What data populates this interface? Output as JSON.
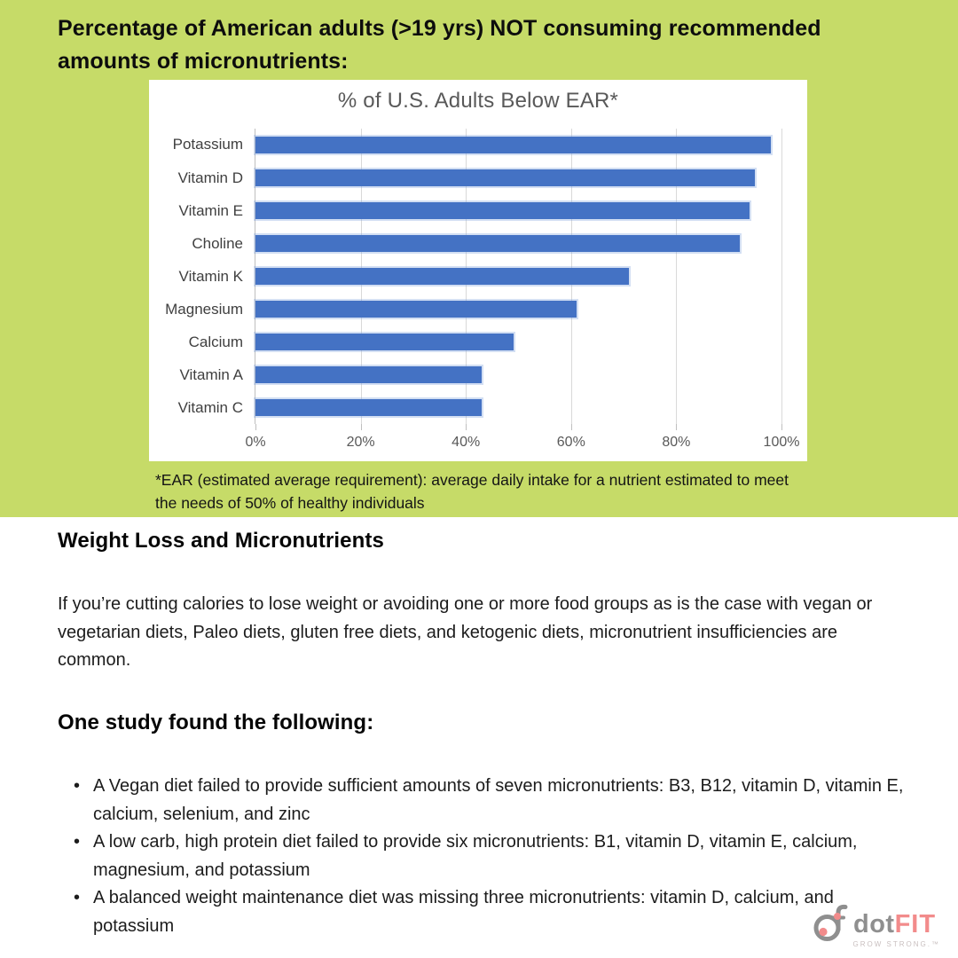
{
  "page": {
    "title": "Percentage of American adults (>19 yrs) NOT consuming recommended amounts of micronutrients:"
  },
  "chart_data": {
    "type": "bar",
    "orientation": "horizontal",
    "title": "% of U.S. Adults Below EAR*",
    "categories": [
      "Potassium",
      "Vitamin D",
      "Vitamin E",
      "Choline",
      "Vitamin K",
      "Magnesium",
      "Calcium",
      "Vitamin A",
      "Vitamin C"
    ],
    "values": [
      98,
      95,
      94,
      92,
      71,
      61,
      49,
      43,
      43
    ],
    "xlabel": "",
    "ylabel": "",
    "xlim": [
      0,
      100
    ],
    "x_ticks": [
      "0%",
      "20%",
      "40%",
      "60%",
      "80%",
      "100%"
    ],
    "grid": true,
    "legend": false,
    "bar_color": "#4472c4"
  },
  "footnote": "*EAR (estimated average requirement): average daily intake for a nutrient estimated to meet the needs of 50% of healthy individuals",
  "sections": {
    "weight_loss_heading": "Weight Loss and Micronutrients",
    "weight_loss_paragraph": "If you’re cutting calories to lose weight or avoiding one or more food groups as is the case with vegan or vegetarian diets, Paleo diets, gluten free diets, and ketogenic diets, micronutrient insufficiencies are common.",
    "study_heading": "One study found the following:",
    "study_bullets": [
      "A Vegan diet failed to provide sufficient amounts of seven micronutrients: B3, B12, vitamin D, vitamin E, calcium, selenium, and zinc",
      "A low carb, high protein diet failed to provide six micronutrients: B1, vitamin D, vitamin E, calcium, magnesium, and potassium",
      "A balanced weight maintenance diet was missing three micronutrients: vitamin D, calcium, and potassium"
    ]
  },
  "logo": {
    "word_dot": "dot",
    "word_fit": "FIT",
    "tagline": "GROW STRONG.™",
    "gray_color": "#8f8f8f",
    "pink_color": "#f28b8b"
  },
  "colors": {
    "background_green": "#c6db68",
    "panel_white": "#ffffff",
    "bar_blue": "#4472c4",
    "chart_title_gray": "#595959",
    "gridline_gray": "#d9d9d9",
    "text_black": "#1c1c1c"
  }
}
